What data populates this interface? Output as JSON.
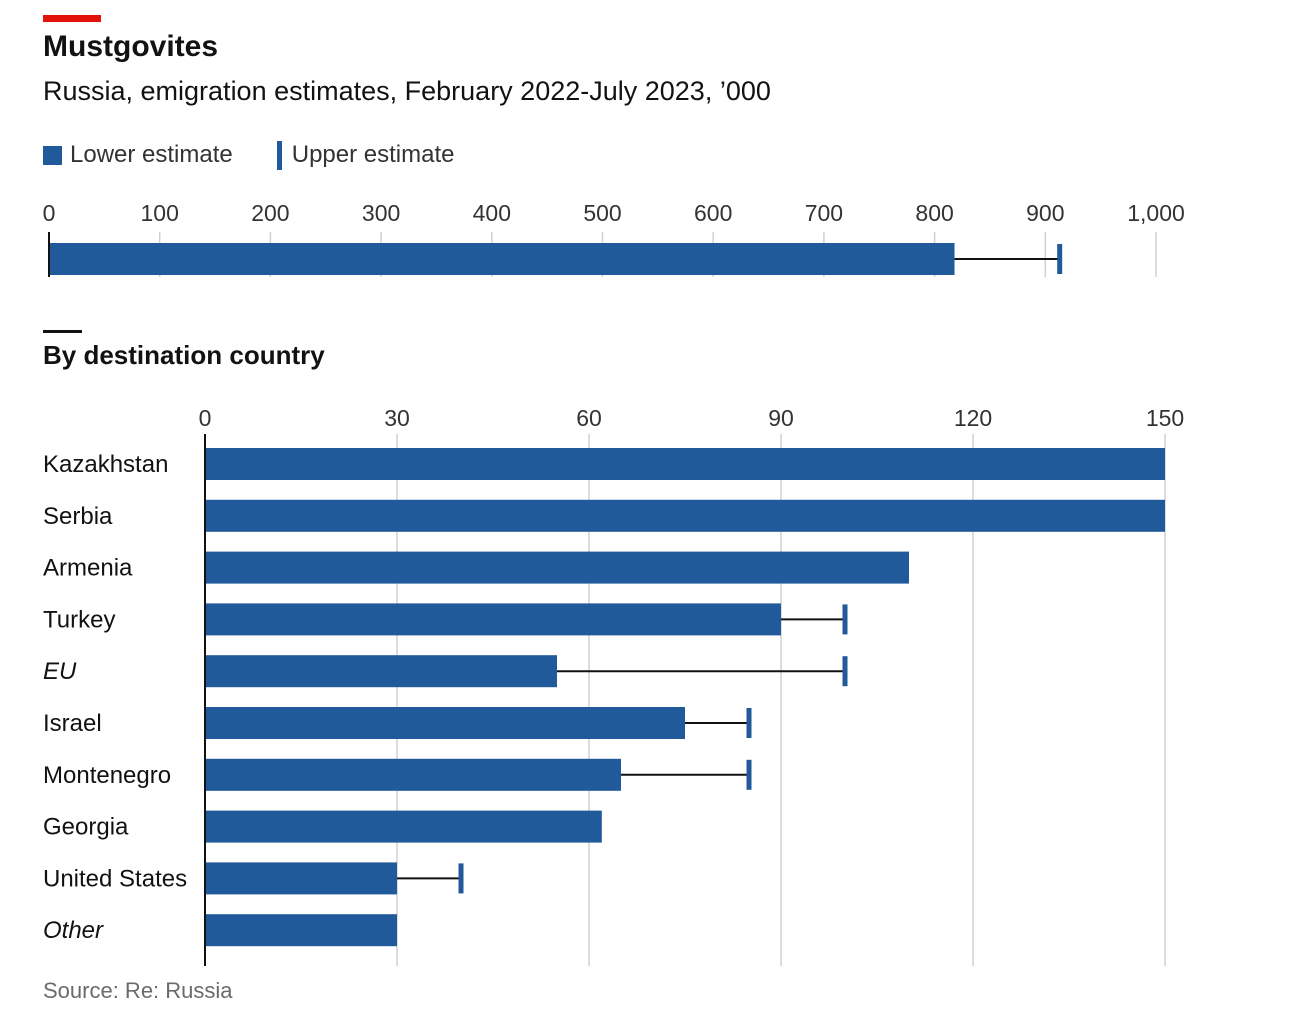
{
  "title": "Mustgovites",
  "subtitle": "Russia, emigration estimates, February 2022-July 2023, ’000",
  "legend": {
    "lower": "Lower estimate",
    "upper": "Upper estimate"
  },
  "section_title": "By destination country",
  "source": "Source: Re: Russia",
  "colors": {
    "bar": "#215a9b",
    "accent": "#e3120b",
    "grid": "#d0d0d0",
    "axis": "#121212"
  },
  "chart_data": [
    {
      "type": "bar",
      "orientation": "horizontal",
      "title": "Mustgovites",
      "subtitle": "Russia, emigration estimates, February 2022-July 2023, ’000",
      "xlim": [
        0,
        1000
      ],
      "ticks": [
        0,
        100,
        200,
        300,
        400,
        500,
        600,
        700,
        800,
        900,
        1000
      ],
      "tick_labels": [
        "0",
        "100",
        "200",
        "300",
        "400",
        "500",
        "600",
        "700",
        "800",
        "900",
        "1,000"
      ],
      "series": [
        {
          "name": "Lower estimate",
          "values": [
            818
          ]
        },
        {
          "name": "Upper estimate",
          "values": [
            913
          ]
        }
      ],
      "grid": true
    },
    {
      "type": "bar",
      "orientation": "horizontal",
      "title": "By destination country",
      "xlim": [
        0,
        150
      ],
      "ticks": [
        0,
        30,
        60,
        90,
        120,
        150
      ],
      "tick_labels": [
        "0",
        "30",
        "60",
        "90",
        "120",
        "150"
      ],
      "categories": [
        "Kazakhstan",
        "Serbia",
        "Armenia",
        "Turkey",
        "EU",
        "Israel",
        "Montenegro",
        "Georgia",
        "United States",
        "Other"
      ],
      "italic_categories": [
        "EU",
        "Other"
      ],
      "series": [
        {
          "name": "Lower estimate",
          "values": [
            150,
            150,
            110,
            90,
            55,
            75,
            65,
            62,
            30,
            30
          ]
        },
        {
          "name": "Upper estimate",
          "values": [
            null,
            null,
            null,
            100,
            100,
            85,
            85,
            null,
            40,
            null
          ]
        }
      ],
      "grid": true
    }
  ]
}
